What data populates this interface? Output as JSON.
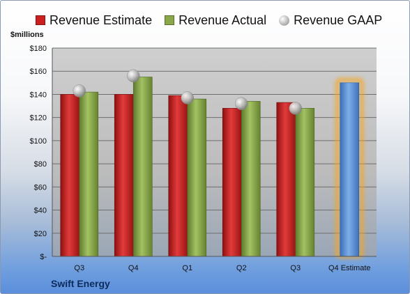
{
  "legend": {
    "estimate_label": "Revenue Estimate",
    "actual_label": "Revenue Actual",
    "gaap_label": "Revenue GAAP"
  },
  "units_label": "$millions",
  "company": "Swift Energy",
  "colors": {
    "estimate": "#cc1f1f",
    "actual": "#8aa84a",
    "forecast": "#5e93d6",
    "forecast_glow": "#f5a623",
    "plot_bg": "#c9c9c9",
    "grid": "#6e6e6e"
  },
  "chart_data": {
    "type": "bar",
    "categories": [
      "Q3",
      "Q4",
      "Q1",
      "Q2",
      "Q3",
      "Q4 Estimate"
    ],
    "series": [
      {
        "name": "Revenue Estimate",
        "values": [
          140,
          140,
          139,
          128,
          133,
          null
        ]
      },
      {
        "name": "Revenue Actual",
        "values": [
          142,
          155,
          136,
          134,
          128,
          null
        ]
      },
      {
        "name": "Revenue GAAP",
        "values": [
          143,
          156,
          137,
          132,
          128,
          null
        ]
      }
    ],
    "forecast": {
      "category": "Q4 Estimate",
      "value": 150
    },
    "ylim": [
      0,
      180
    ],
    "yticks": [
      0,
      20,
      40,
      60,
      80,
      100,
      120,
      140,
      160,
      180
    ],
    "ytick_labels": [
      "$-",
      "$20",
      "$40",
      "$60",
      "$80",
      "$100",
      "$120",
      "$140",
      "$160",
      "$180"
    ],
    "ylabel": "$millions",
    "grid": true
  }
}
